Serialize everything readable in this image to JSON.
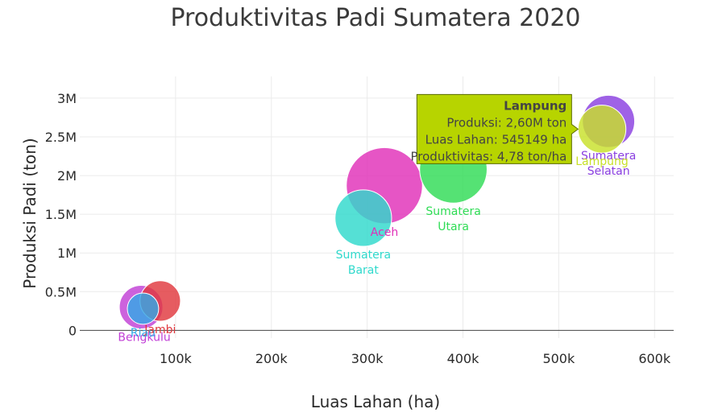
{
  "chart_data": {
    "type": "scatter",
    "title": "Produktivitas Padi Sumatera 2020",
    "xlabel": "Luas Lahan (ha)",
    "ylabel": "Produksi Padi (ton)",
    "xlim": [
      0,
      620000
    ],
    "ylim": [
      -100000,
      3280000
    ],
    "x_ticks": [
      100000,
      200000,
      300000,
      400000,
      500000,
      600000
    ],
    "x_tick_labels": [
      "100k",
      "200k",
      "300k",
      "400k",
      "500k",
      "600k"
    ],
    "y_ticks": [
      0,
      500000,
      1000000,
      1500000,
      2000000,
      2500000,
      3000000
    ],
    "y_tick_labels": [
      "0",
      "0.5M",
      "1M",
      "1.5M",
      "2M",
      "2.5M",
      "3M"
    ],
    "grid": true,
    "points": [
      {
        "name": "Bengkulu",
        "x": 64000,
        "y": 300000,
        "color": "#c13fd6",
        "size": 1.0,
        "label_lines": [
          "Bengkulu"
        ],
        "label_pos": "below-left"
      },
      {
        "name": "Jambi",
        "x": 84000,
        "y": 380000,
        "color": "#e0383e",
        "size": 0.93,
        "label_lines": [
          "Jambi"
        ],
        "label_pos": "below"
      },
      {
        "name": "Riau",
        "x": 66000,
        "y": 280000,
        "color": "#33a8e6",
        "size": 0.72,
        "label_lines": [
          "Riau"
        ],
        "label_pos": "below"
      },
      {
        "name": "Sumatera Barat",
        "x": 296000,
        "y": 1450000,
        "color": "#2fd9cc",
        "size": 1.3,
        "label_lines": [
          "Sumatera",
          "Barat"
        ],
        "label_pos": "below"
      },
      {
        "name": "Aceh",
        "x": 318000,
        "y": 1870000,
        "color": "#e02fb8",
        "size": 1.75,
        "label_lines": [
          "Aceh"
        ],
        "label_pos": "below"
      },
      {
        "name": "Sumatera Utara",
        "x": 390000,
        "y": 2080000,
        "color": "#2fdc55",
        "size": 1.55,
        "label_lines": [
          "Sumatera",
          "Utara"
        ],
        "label_pos": "below"
      },
      {
        "name": "Sumatera Selatan",
        "x": 552000,
        "y": 2700000,
        "color": "#8a3fe0",
        "size": 1.2,
        "label_lines": [
          "Sumatera",
          "Selatan"
        ],
        "label_pos": "below"
      },
      {
        "name": "Lampung",
        "x": 545149,
        "y": 2600000,
        "color": "#c8e02a",
        "size": 1.1,
        "label_lines": [
          "Lampung"
        ],
        "label_pos": "below"
      }
    ],
    "tooltip": {
      "name": "Lampung",
      "lines": [
        "Produksi: 2,60M ton",
        "Luas Lahan: 545149 ha",
        "Produktivitas: 4,78 ton/ha"
      ],
      "background": "#b7d400"
    }
  }
}
